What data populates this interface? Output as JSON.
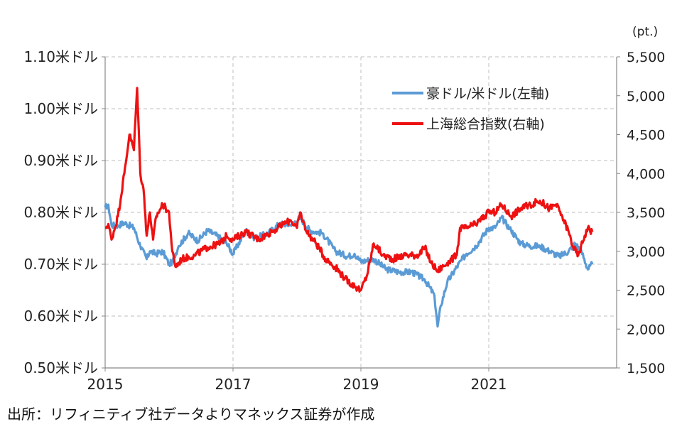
{
  "chart_data": {
    "type": "line",
    "unit_right": "(pt.)",
    "source": "出所：リフィニティブ社データよりマネックス証券が作成",
    "x_ticks": [
      "2015",
      "2017",
      "2019",
      "2021"
    ],
    "x_tick_years": [
      2015,
      2017,
      2019,
      2021
    ],
    "xlim": [
      2015.0,
      2023.0
    ],
    "y_left": {
      "ticks": [
        0.5,
        0.6,
        0.7,
        0.8,
        0.9,
        1.0,
        1.1
      ],
      "tick_labels": [
        "0.50米ドル",
        "0.60米ドル",
        "0.70米ドル",
        "0.80米ドル",
        "0.90米ドル",
        "1.00米ドル",
        "1.10米ドル"
      ],
      "ylim": [
        0.5,
        1.1
      ]
    },
    "y_right": {
      "ticks": [
        1500,
        2000,
        2500,
        3000,
        3500,
        4000,
        4500,
        5000,
        5500
      ],
      "tick_labels": [
        "1,500",
        "2,000",
        "2,500",
        "3,000",
        "3,500",
        "4,000",
        "4,500",
        "5,000",
        "5,500"
      ],
      "ylim": [
        1500,
        5500
      ]
    },
    "grid": true,
    "legend_position": "top-right",
    "series": [
      {
        "name": "豪ドル/米ドル(左軸)",
        "axis": "left",
        "color": "#5B9BD5",
        "x": [
          2015.0,
          2015.05,
          2015.1,
          2015.2,
          2015.3,
          2015.45,
          2015.55,
          2015.65,
          2015.7,
          2015.8,
          2015.9,
          2016.0,
          2016.05,
          2016.15,
          2016.3,
          2016.45,
          2016.6,
          2016.75,
          2016.9,
          2017.0,
          2017.2,
          2017.35,
          2017.55,
          2017.75,
          2017.9,
          2018.05,
          2018.2,
          2018.4,
          2018.6,
          2018.8,
          2018.9,
          2019.0,
          2019.2,
          2019.4,
          2019.6,
          2019.8,
          2020.0,
          2020.15,
          2020.2,
          2020.25,
          2020.35,
          2020.5,
          2020.65,
          2020.8,
          2021.0,
          2021.1,
          2021.2,
          2021.35,
          2021.5,
          2021.65,
          2021.8,
          2021.95,
          2022.1,
          2022.25,
          2022.35,
          2022.45,
          2022.55,
          2022.62
        ],
        "values": [
          0.81,
          0.815,
          0.775,
          0.775,
          0.78,
          0.77,
          0.735,
          0.71,
          0.725,
          0.72,
          0.725,
          0.7,
          0.705,
          0.735,
          0.76,
          0.745,
          0.765,
          0.755,
          0.74,
          0.72,
          0.765,
          0.75,
          0.76,
          0.78,
          0.775,
          0.79,
          0.765,
          0.76,
          0.725,
          0.715,
          0.72,
          0.705,
          0.71,
          0.69,
          0.685,
          0.685,
          0.67,
          0.64,
          0.58,
          0.62,
          0.665,
          0.695,
          0.72,
          0.735,
          0.77,
          0.77,
          0.79,
          0.765,
          0.74,
          0.735,
          0.735,
          0.725,
          0.715,
          0.725,
          0.74,
          0.725,
          0.69,
          0.7
        ]
      },
      {
        "name": "上海総合指数(右軸)",
        "axis": "right",
        "color": "#EE1111",
        "x": [
          2015.0,
          2015.05,
          2015.1,
          2015.2,
          2015.3,
          2015.38,
          2015.45,
          2015.5,
          2015.55,
          2015.6,
          2015.65,
          2015.7,
          2015.75,
          2015.8,
          2015.9,
          2016.0,
          2016.05,
          2016.1,
          2016.2,
          2016.4,
          2016.6,
          2016.8,
          2016.9,
          2017.0,
          2017.2,
          2017.4,
          2017.6,
          2017.8,
          2017.9,
          2018.0,
          2018.05,
          2018.15,
          2018.3,
          2018.45,
          2018.6,
          2018.75,
          2018.9,
          2019.0,
          2019.1,
          2019.2,
          2019.35,
          2019.5,
          2019.7,
          2019.9,
          2020.0,
          2020.1,
          2020.2,
          2020.35,
          2020.5,
          2020.55,
          2020.65,
          2020.8,
          2021.0,
          2021.1,
          2021.2,
          2021.35,
          2021.5,
          2021.65,
          2021.8,
          2021.95,
          2022.05,
          2022.15,
          2022.25,
          2022.32,
          2022.4,
          2022.5,
          2022.55,
          2022.62
        ],
        "values": [
          3300,
          3350,
          3150,
          3450,
          4000,
          4500,
          4300,
          5100,
          4000,
          3800,
          3200,
          3500,
          3150,
          3450,
          3600,
          3500,
          3000,
          2800,
          2900,
          2950,
          3050,
          3100,
          3200,
          3150,
          3250,
          3150,
          3250,
          3350,
          3400,
          3300,
          3500,
          3250,
          3100,
          2900,
          2800,
          2650,
          2550,
          2500,
          2700,
          3100,
          2950,
          2900,
          2950,
          2950,
          3050,
          2850,
          2750,
          2850,
          2950,
          3300,
          3300,
          3350,
          3500,
          3500,
          3600,
          3450,
          3550,
          3600,
          3650,
          3550,
          3600,
          3450,
          3250,
          3050,
          2950,
          3200,
          3300,
          3250
        ]
      }
    ]
  }
}
